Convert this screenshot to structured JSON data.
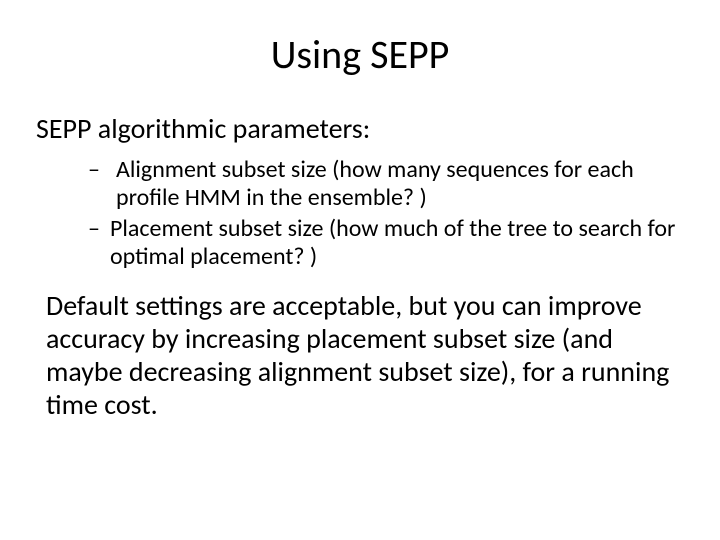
{
  "title": "Using SEPP",
  "subhead": "SEPP algorithmic parameters:",
  "bullets": [
    " Alignment subset size (how many sequences for each profile HMM in the ensemble? )",
    "Placement subset size (how much of the tree to search for optimal placement? )"
  ],
  "paragraph": "Default settings are acceptable, but you can improve accuracy by increasing placement subset size (and maybe decreasing alignment subset size), for a running time cost.",
  "colors": {
    "background": "#ffffff",
    "text": "#000000"
  },
  "fonts": {
    "title_size_pt": 40,
    "subhead_size_pt": 28,
    "bullet_size_pt": 24,
    "body_size_pt": 28
  }
}
